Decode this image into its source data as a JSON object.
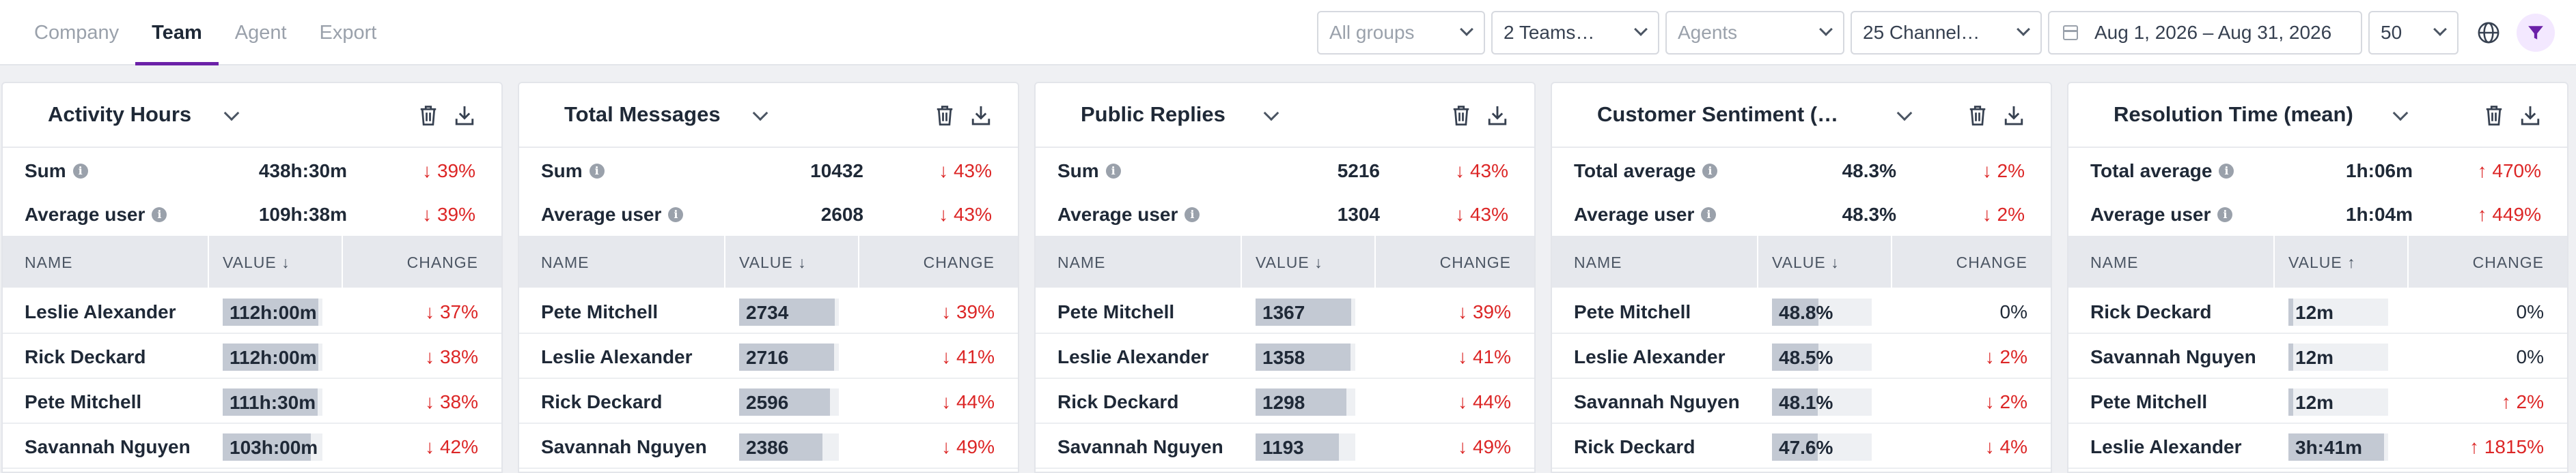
{
  "tabs": [
    "Company",
    "Team",
    "Agent",
    "Export"
  ],
  "active_tab": "Team",
  "filters": {
    "groups_placeholder": "All groups",
    "teams": "2 Teams…",
    "agents_placeholder": "Agents",
    "channels": "25 Channel…",
    "date_range": "Aug 1, 2026 – Aug 31, 2026",
    "page_size": "50"
  },
  "colors": {
    "accent": "#6b21a8",
    "negative": "#dc2626",
    "bar": "#c3c9d3",
    "header_bg": "#e6e8ed"
  },
  "table_headers": {
    "name": "NAME",
    "value": "VALUE",
    "change": "CHANGE"
  },
  "cards": [
    {
      "title": "Activity Hours",
      "summary": [
        {
          "label": "Sum",
          "value": "438h:30m",
          "change": "↓ 39%"
        },
        {
          "label": "Average user",
          "value": "109h:38m",
          "change": "↓ 39%"
        }
      ],
      "sort_arrow": "↓",
      "rows": [
        {
          "name": "Leslie Alexander",
          "value": "112h:00m",
          "change": "↓ 37%",
          "bar": 1.0
        },
        {
          "name": "Rick Deckard",
          "value": "112h:00m",
          "change": "↓ 38%",
          "bar": 1.0
        },
        {
          "name": "Pete Mitchell",
          "value": "111h:30m",
          "change": "↓ 38%",
          "bar": 0.99
        },
        {
          "name": "Savannah Nguyen",
          "value": "103h:00m",
          "change": "↓ 42%",
          "bar": 0.92
        }
      ]
    },
    {
      "title": "Total Messages",
      "summary": [
        {
          "label": "Sum",
          "value": "10432",
          "change": "↓ 43%"
        },
        {
          "label": "Average user",
          "value": "2608",
          "change": "↓ 43%"
        }
      ],
      "sort_arrow": "↓",
      "rows": [
        {
          "name": "Pete Mitchell",
          "value": "2734",
          "change": "↓ 39%",
          "bar": 1.0
        },
        {
          "name": "Leslie Alexander",
          "value": "2716",
          "change": "↓ 41%",
          "bar": 0.99
        },
        {
          "name": "Rick Deckard",
          "value": "2596",
          "change": "↓ 44%",
          "bar": 0.95
        },
        {
          "name": "Savannah Nguyen",
          "value": "2386",
          "change": "↓ 49%",
          "bar": 0.87
        }
      ]
    },
    {
      "title": "Public Replies",
      "summary": [
        {
          "label": "Sum",
          "value": "5216",
          "change": "↓ 43%"
        },
        {
          "label": "Average user",
          "value": "1304",
          "change": "↓ 43%"
        }
      ],
      "sort_arrow": "↓",
      "rows": [
        {
          "name": "Pete Mitchell",
          "value": "1367",
          "change": "↓ 39%",
          "bar": 1.0
        },
        {
          "name": "Leslie Alexander",
          "value": "1358",
          "change": "↓ 41%",
          "bar": 0.99
        },
        {
          "name": "Rick Deckard",
          "value": "1298",
          "change": "↓ 44%",
          "bar": 0.95
        },
        {
          "name": "Savannah Nguyen",
          "value": "1193",
          "change": "↓ 49%",
          "bar": 0.87
        }
      ]
    },
    {
      "title": "Customer Sentiment (…",
      "summary": [
        {
          "label": "Total average",
          "value": "48.3%",
          "change": "↓ 2%"
        },
        {
          "label": "Average user",
          "value": "48.3%",
          "change": "↓ 2%"
        }
      ],
      "sort_arrow": "↓",
      "rows": [
        {
          "name": "Pete Mitchell",
          "value": "48.8%",
          "change": "0%",
          "bar": 0.488
        },
        {
          "name": "Leslie Alexander",
          "value": "48.5%",
          "change": "↓ 2%",
          "bar": 0.485
        },
        {
          "name": "Savannah Nguyen",
          "value": "48.1%",
          "change": "↓ 2%",
          "bar": 0.481
        },
        {
          "name": "Rick Deckard",
          "value": "47.6%",
          "change": "↓ 4%",
          "bar": 0.476
        }
      ]
    },
    {
      "title": "Resolution Time (mean)",
      "summary": [
        {
          "label": "Total average",
          "value": "1h:06m",
          "change": "↑ 470%"
        },
        {
          "label": "Average user",
          "value": "1h:04m",
          "change": "↑ 449%"
        }
      ],
      "sort_arrow": "↑",
      "rows": [
        {
          "name": "Rick Deckard",
          "value": "12m",
          "change": "0%",
          "bar": 0.05
        },
        {
          "name": "Savannah Nguyen",
          "value": "12m",
          "change": "0%",
          "bar": 0.05
        },
        {
          "name": "Pete Mitchell",
          "value": "12m",
          "change": "↑ 2%",
          "bar": 0.05
        },
        {
          "name": "Leslie Alexander",
          "value": "3h:41m",
          "change": "↑ 1815%",
          "bar": 1.0
        }
      ]
    }
  ]
}
